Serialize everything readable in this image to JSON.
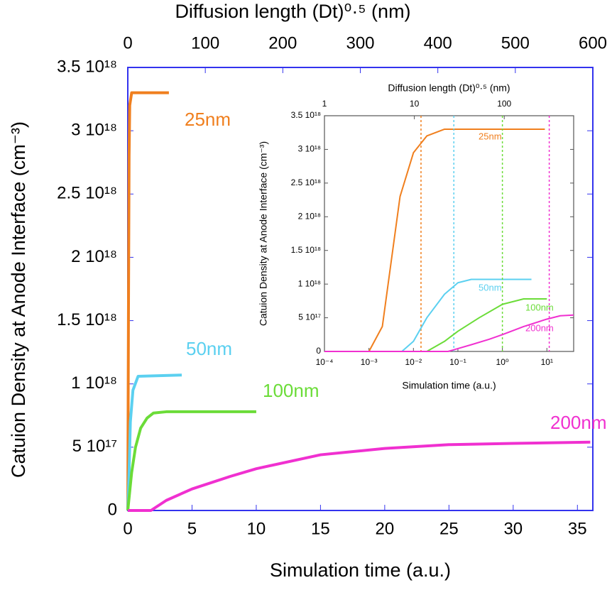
{
  "chart_data": [
    {
      "type": "line",
      "x_label": "Simulation time (a.u.)",
      "y_label": "Catuion Density at Anode Interface (cm⁻³)",
      "x2_label": "Diffusion length (Dt)⁰·⁵  (nm)",
      "xlim": [
        0,
        36.2
      ],
      "xticks": [
        0,
        5,
        10,
        15,
        20,
        25,
        30,
        35
      ],
      "x2lim": [
        0,
        600
      ],
      "x2ticks": [
        0,
        100,
        200,
        300,
        400,
        500,
        600
      ],
      "ylim": [
        0,
        3.5e+18
      ],
      "yticks": [
        0,
        {
          "value": 5e+17,
          "label": "5 10¹⁷"
        },
        {
          "value": 1e+18,
          "label": "1 10¹⁸"
        },
        {
          "value": 1.5e+18,
          "label": "1.5 10¹⁸"
        },
        {
          "value": 2e+18,
          "label": "2 10¹⁸"
        },
        {
          "value": 2.5e+18,
          "label": "2.5 10¹⁸"
        },
        {
          "value": 3e+18,
          "label": "3 10¹⁸"
        },
        {
          "value": 3.5e+18,
          "label": "3.5 10¹⁸"
        }
      ],
      "frame_color": "#3333ee",
      "series": [
        {
          "name": "25nm",
          "color": "#f07f1e",
          "x": [
            0,
            0.05,
            0.1,
            0.15,
            0.3,
            3.2
          ],
          "values": [
            0,
            1.5e+18,
            2.8e+18,
            3.2e+18,
            3.3e+18,
            3.3e+18
          ]
        },
        {
          "name": "50nm",
          "color": "#5bd0f0",
          "x": [
            0,
            0.1,
            0.2,
            0.4,
            0.8,
            4.2
          ],
          "values": [
            0,
            3e+17,
            7e+17,
            9.5e+17,
            1.06e+18,
            1.07e+18
          ]
        },
        {
          "name": "100nm",
          "color": "#6bdc38",
          "x": [
            0,
            0.3,
            0.6,
            1,
            1.5,
            2,
            3,
            10
          ],
          "values": [
            0,
            3e+17,
            5e+17,
            6.5e+17,
            7.3e+17,
            7.7e+17,
            7.8e+17,
            7.8e+17
          ]
        },
        {
          "name": "200nm",
          "color": "#f030d0",
          "x": [
            0,
            1.8,
            3,
            5,
            8,
            10,
            15,
            20,
            25,
            30,
            36
          ],
          "values": [
            0,
            0,
            8e+16,
            1.7e+17,
            2.7e+17,
            3.3e+17,
            4.4e+17,
            4.9e+17,
            5.2e+17,
            5.3e+17,
            5.4e+17
          ]
        }
      ]
    },
    {
      "type": "line",
      "x_label": "Simulation time (a.u.)",
      "y_label": "Catuion Density at Anode Interface (cm⁻³)",
      "x2_label": "Diffusion length (Dt)⁰·⁵  (nm)",
      "x_scale": "log",
      "x2_scale": "log",
      "xlim": [
        0.0001,
        40
      ],
      "xticks": [
        {
          "value": 0.0001,
          "label": "10⁻⁴"
        },
        {
          "value": 0.001,
          "label": "10⁻³"
        },
        {
          "value": 0.01,
          "label": "10⁻²"
        },
        {
          "value": 0.1,
          "label": "10⁻¹"
        },
        {
          "value": 1,
          "label": "10⁰"
        },
        {
          "value": 10,
          "label": "10¹"
        }
      ],
      "x2lim": [
        1,
        592
      ],
      "x2ticks": [
        1,
        10,
        100
      ],
      "ylim": [
        0,
        3.5e+18
      ],
      "yticks": [
        0,
        {
          "value": 5e+17,
          "label": "5 10¹⁷"
        },
        {
          "value": 1e+18,
          "label": "1 10¹⁸"
        },
        {
          "value": 1.5e+18,
          "label": "1.5 10¹⁸"
        },
        {
          "value": 2e+18,
          "label": "2 10¹⁸"
        },
        {
          "value": 2.5e+18,
          "label": "2.5 10¹⁸"
        },
        {
          "value": 3e+18,
          "label": "3 10¹⁸"
        },
        {
          "value": 3.5e+18,
          "label": "3.5 10¹⁸"
        }
      ],
      "frame_color": "#555555",
      "series": [
        {
          "name": "25nm",
          "color": "#f07f1e",
          "vline": 0.0148,
          "x": [
            0.0001,
            0.001,
            0.002,
            0.005,
            0.01,
            0.02,
            0.05,
            9
          ],
          "values": [
            0,
            0,
            3.7e+17,
            2.3e+18,
            2.95e+18,
            3.2e+18,
            3.3e+18,
            3.3e+18
          ]
        },
        {
          "name": "50nm",
          "color": "#5bd0f0",
          "vline": 0.081,
          "x": [
            0.0001,
            0.0055,
            0.01,
            0.02,
            0.05,
            0.1,
            0.2,
            4.5
          ],
          "values": [
            0,
            0,
            1.5e+17,
            5e+17,
            8.5e+17,
            1.02e+18,
            1.07e+18,
            1.07e+18
          ]
        },
        {
          "name": "100nm",
          "color": "#6bdc38",
          "vline": 1,
          "x": [
            0.0001,
            0.02,
            0.05,
            0.1,
            0.3,
            1,
            3,
            10
          ],
          "values": [
            0,
            0,
            1.5e+17,
            3e+17,
            5e+17,
            7e+17,
            7.8e+17,
            7.8e+17
          ]
        },
        {
          "name": "200nm",
          "color": "#f030d0",
          "vline": 11.3,
          "x": [
            0.0001,
            0.06,
            0.2,
            0.5,
            1,
            3,
            10,
            20,
            40
          ],
          "values": [
            0,
            0,
            1e+17,
            1.8e+17,
            2.5e+17,
            3.7e+17,
            4.8e+17,
            5.3e+17,
            5.4e+17
          ]
        }
      ]
    }
  ]
}
